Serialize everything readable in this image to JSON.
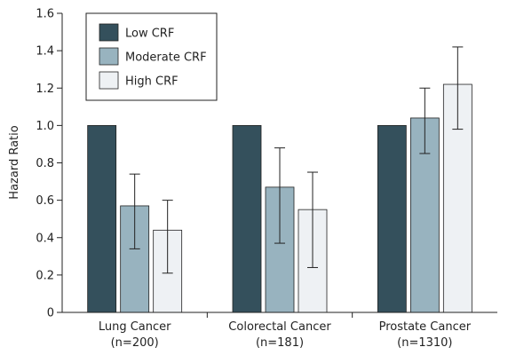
{
  "chart_data": {
    "type": "bar",
    "title": "",
    "xlabel": "",
    "ylabel": "Hazard Ratio",
    "ylim": [
      0,
      1.6
    ],
    "yticks": [
      0,
      0.2,
      0.4,
      0.6,
      0.8,
      1.0,
      1.2,
      1.4,
      1.6
    ],
    "ytick_labels": [
      "0",
      "0.2",
      "0.4",
      "0.6",
      "0.8",
      "1.0",
      "1.2",
      "1.4",
      "1.6"
    ],
    "grid": false,
    "legend_position": "top-left",
    "categories": [
      {
        "line1": "Lung Cancer",
        "line2": "(n=200)"
      },
      {
        "line1": "Colorectal Cancer",
        "line2": "(n=181)"
      },
      {
        "line1": "Prostate Cancer",
        "line2": "(n=1310)"
      }
    ],
    "series": [
      {
        "name": "Low CRF",
        "color": "#34505c",
        "values": [
          1.0,
          1.0,
          1.0
        ],
        "ci_low": [
          null,
          null,
          null
        ],
        "ci_high": [
          null,
          null,
          null
        ]
      },
      {
        "name": "Moderate CRF",
        "color": "#98b3bf",
        "values": [
          0.57,
          0.67,
          1.04
        ],
        "ci_low": [
          0.34,
          0.37,
          0.85
        ],
        "ci_high": [
          0.74,
          0.88,
          1.2
        ]
      },
      {
        "name": "High CRF",
        "color": "#eef1f4",
        "values": [
          0.44,
          0.55,
          1.22
        ],
        "ci_low": [
          0.21,
          0.24,
          0.98
        ],
        "ci_high": [
          0.6,
          0.75,
          1.42
        ]
      }
    ]
  }
}
